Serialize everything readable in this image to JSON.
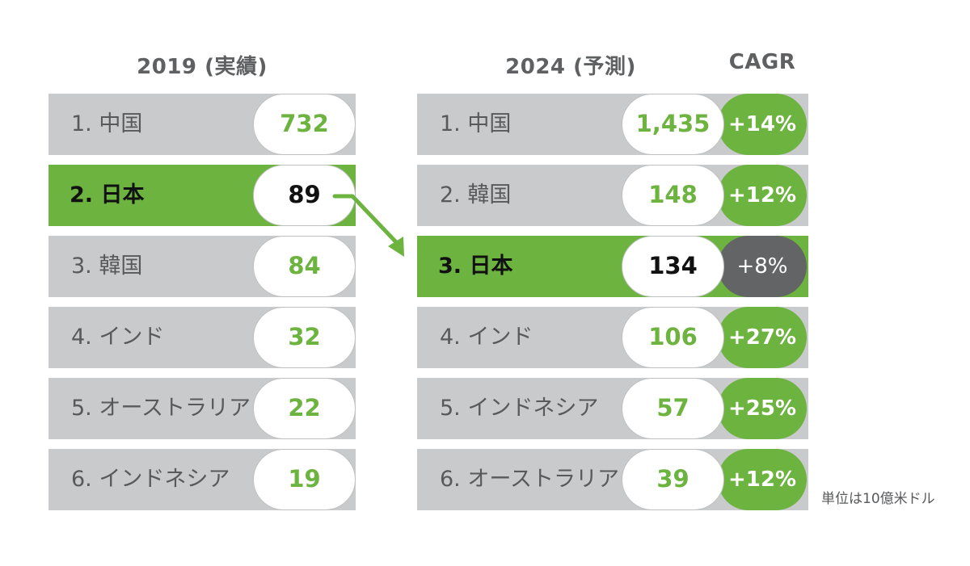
{
  "chart_data": {
    "type": "table",
    "left": {
      "header": "2019 (実績)",
      "rows": [
        {
          "name": "1. 中国",
          "value": "732",
          "highlight": false
        },
        {
          "name": "2. 日本",
          "value": "89",
          "highlight": true
        },
        {
          "name": "3. 韓国",
          "value": "84",
          "highlight": false
        },
        {
          "name": "4. インド",
          "value": "32",
          "highlight": false
        },
        {
          "name": "5. オーストラリア",
          "value": "22",
          "highlight": false
        },
        {
          "name": "6. インドネシア",
          "value": "19",
          "highlight": false
        }
      ]
    },
    "right": {
      "header": "2024 (予測)",
      "cagr_header": "CAGR",
      "rows": [
        {
          "name": "1. 中国",
          "value": "1,435",
          "cagr": "+14%",
          "highlight": false
        },
        {
          "name": "2. 韓国",
          "value": "148",
          "cagr": "+12%",
          "highlight": false
        },
        {
          "name": "3. 日本",
          "value": "134",
          "cagr": "+8%",
          "highlight": true
        },
        {
          "name": "4. インド",
          "value": "106",
          "cagr": "+27%",
          "highlight": false
        },
        {
          "name": "5. インドネシア",
          "value": "57",
          "cagr": "+25%",
          "highlight": false
        },
        {
          "name": "6. オーストラリア",
          "value": "39",
          "cagr": "+12%",
          "highlight": false
        }
      ]
    },
    "unit_note": "単位は10億米ドル",
    "colors": {
      "accent_green": "#6db33f",
      "row_gray": "#c9cacb",
      "cagr_gray": "#636466",
      "text_gray": "#58595b"
    }
  }
}
